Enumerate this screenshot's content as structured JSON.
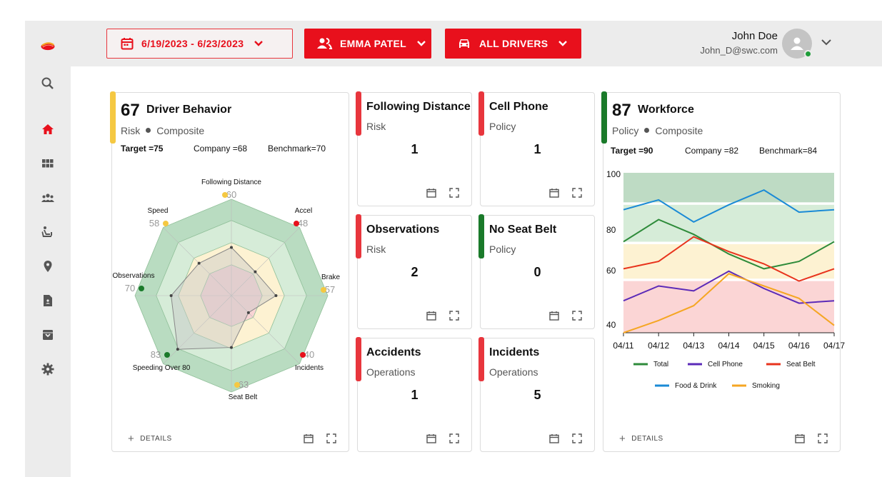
{
  "header": {
    "date_range": "6/19/2023 - 6/23/2023",
    "driver_select": "EMMA PATEL",
    "vehicle_select": "ALL DRIVERS",
    "user_name": "John Doe",
    "user_email": "John_D@swc.com"
  },
  "sidebar": {
    "items": [
      "search-icon",
      "home-icon",
      "grid-icon",
      "group-icon",
      "seat-icon",
      "location-icon",
      "report-icon",
      "archive-icon",
      "settings-icon"
    ],
    "active": "home-icon"
  },
  "colors": {
    "brand_red": "#e8101c",
    "accent_yellow": "#f5c842",
    "accent_green": "#1a7a2a",
    "accent_red": "#e8363d"
  },
  "driver_behavior": {
    "score": "67",
    "title": "Driver Behavior",
    "category": "Risk",
    "type": "Composite",
    "target": "Target =75",
    "company": "Company =68",
    "benchmark": "Benchmark=70",
    "details_label": "DETAILS",
    "radar": [
      {
        "label": "Following Distance",
        "value": "60",
        "status": "yellow"
      },
      {
        "label": "Accel",
        "value": "48",
        "status": "red"
      },
      {
        "label": "Brake",
        "value": "57",
        "status": "yellow"
      },
      {
        "label": "Incidents",
        "value": "40",
        "status": "red"
      },
      {
        "label": "Seat Belt",
        "value": "63",
        "status": "yellow"
      },
      {
        "label": "Speeding Over 80",
        "value": "83",
        "status": "green"
      },
      {
        "label": "Observations",
        "value": "70",
        "status": "green"
      },
      {
        "label": "Speed",
        "value": "58",
        "status": "yellow"
      }
    ]
  },
  "small_cards": [
    {
      "title": "Following Distance",
      "category": "Risk",
      "value": "1",
      "accent": "red"
    },
    {
      "title": "Cell Phone",
      "category": "Policy",
      "value": "1",
      "accent": "red"
    },
    {
      "title": "Observations",
      "category": "Risk",
      "value": "2",
      "accent": "red"
    },
    {
      "title": "No Seat Belt",
      "category": "Policy",
      "value": "0",
      "accent": "green"
    },
    {
      "title": "Accidents",
      "category": "Operations",
      "value": "1",
      "accent": "red"
    },
    {
      "title": "Incidents",
      "category": "Operations",
      "value": "5",
      "accent": "red"
    }
  ],
  "workforce": {
    "score": "87",
    "title": "Workforce",
    "category": "Policy",
    "type": "Composite",
    "target": "Target =90",
    "company": "Company =82",
    "benchmark": "Benchmark=84",
    "details_label": "DETAILS"
  },
  "chart_data": {
    "type": "line",
    "x": [
      "04/11",
      "04/12",
      "04/13",
      "04/14",
      "04/15",
      "04/16",
      "04/17"
    ],
    "yticks": [
      "100",
      "80",
      "60",
      "40"
    ],
    "series": [
      {
        "name": "Total",
        "color": "#2e8b3a",
        "values": [
          72,
          81,
          75,
          67,
          61,
          64,
          72
        ]
      },
      {
        "name": "Cell Phone",
        "color": "#5b2ab8",
        "values": [
          48,
          54,
          52,
          60,
          53,
          47,
          48
        ]
      },
      {
        "name": "Seat Belt",
        "color": "#e8331c",
        "values": [
          61,
          64,
          74,
          68,
          63,
          56,
          61
        ]
      },
      {
        "name": "Food & Drink",
        "color": "#1a8ad6",
        "values": [
          85,
          89,
          80,
          87,
          93,
          84,
          85
        ]
      },
      {
        "name": "Smoking",
        "color": "#f5a623",
        "values": [
          35,
          40,
          46,
          59,
          54,
          49,
          38
        ]
      }
    ]
  }
}
